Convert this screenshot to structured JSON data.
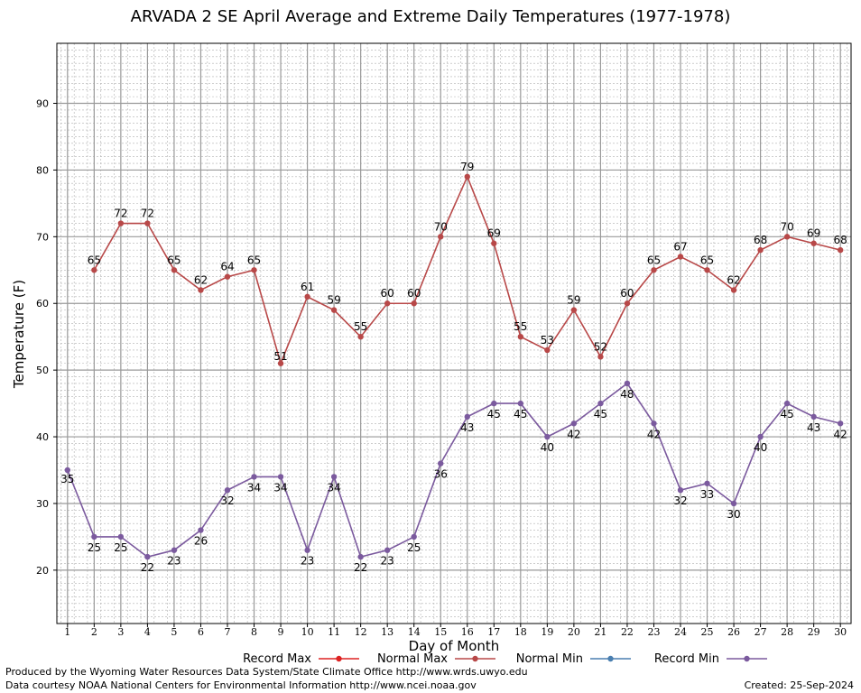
{
  "chart_data": {
    "type": "line",
    "title": "ARVADA 2 SE April Average and Extreme Daily Temperatures (1977-1978)",
    "xlabel": "Day of Month",
    "ylabel": "Temperature (F)",
    "ylim": [
      12,
      99
    ],
    "xlim": [
      0.6,
      30.4
    ],
    "yticks": [
      20,
      30,
      40,
      50,
      60,
      70,
      80,
      90
    ],
    "x": [
      1,
      2,
      3,
      4,
      5,
      6,
      7,
      8,
      9,
      10,
      11,
      12,
      13,
      14,
      15,
      16,
      17,
      18,
      19,
      20,
      21,
      22,
      23,
      24,
      25,
      26,
      27,
      28,
      29,
      30
    ],
    "grid": true,
    "legend_position": "bottom",
    "series": [
      {
        "name": "Record Max",
        "color": "#dd2222",
        "values": [
          null,
          null,
          null,
          null,
          null,
          null,
          null,
          null,
          null,
          null,
          null,
          null,
          null,
          null,
          null,
          null,
          null,
          null,
          null,
          null,
          null,
          null,
          null,
          null,
          null,
          null,
          null,
          null,
          null,
          null
        ]
      },
      {
        "name": "Normal Max",
        "color": "#b84848",
        "values": [
          null,
          65,
          72,
          72,
          65,
          62,
          64,
          65,
          51,
          61,
          59,
          55,
          60,
          60,
          70,
          79,
          69,
          55,
          53,
          59,
          52,
          60,
          65,
          67,
          65,
          62,
          68,
          70,
          69,
          68
        ]
      },
      {
        "name": "Normal Min",
        "color": "#4a7fb0",
        "values": [
          null,
          null,
          null,
          null,
          null,
          null,
          null,
          null,
          null,
          null,
          null,
          null,
          null,
          null,
          null,
          null,
          null,
          null,
          null,
          null,
          null,
          null,
          null,
          null,
          null,
          null,
          null,
          null,
          null,
          null
        ]
      },
      {
        "name": "Record Min",
        "color": "#7b5a9e",
        "values": [
          35,
          25,
          25,
          22,
          23,
          26,
          32,
          34,
          34,
          23,
          34,
          22,
          23,
          25,
          36,
          43,
          45,
          45,
          40,
          42,
          45,
          48,
          42,
          32,
          33,
          30,
          40,
          45,
          43,
          42
        ]
      }
    ]
  },
  "footer": {
    "line1": "Produced by the Wyoming Water Resources Data System/State Climate Office http://www.wrds.uwyo.edu",
    "line2": "Data courtesy NOAA National Centers for Environmental Information http://www.ncei.noaa.gov",
    "created": "Created:  25-Sep-2024"
  }
}
